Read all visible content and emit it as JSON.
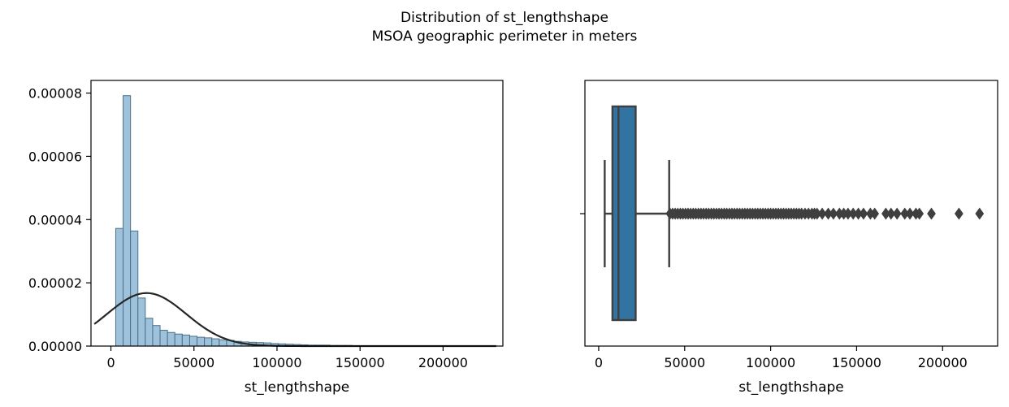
{
  "figure": {
    "title_line1": "Distribution of st_lengthshape",
    "title_line2": "MSOA geographic perimeter in meters"
  },
  "chart_data": [
    {
      "type": "histogram",
      "xlabel": "st_lengthshape",
      "ylabel": "",
      "xlim": [
        -12000,
        236000
      ],
      "ylim": [
        0,
        8.4e-05
      ],
      "xticks": [
        0,
        50000,
        100000,
        150000,
        200000
      ],
      "xtick_labels": [
        "0",
        "50000",
        "100000",
        "150000",
        "200000"
      ],
      "yticks": [
        0,
        2e-05,
        4e-05,
        6e-05,
        8e-05
      ],
      "ytick_labels": [
        "0.00000",
        "0.00002",
        "0.00004",
        "0.00006",
        "0.00008"
      ],
      "bin_start": 2900,
      "bin_width": 4450,
      "bin_densities": [
        3.72e-05,
        7.92e-05,
        3.64e-05,
        1.52e-05,
        8.8e-06,
        6.5e-06,
        5e-06,
        4.3e-06,
        3.8e-06,
        3.5e-06,
        3.1e-06,
        2.8e-06,
        2.6e-06,
        2.3e-06,
        2e-06,
        1.8e-06,
        1.5e-06,
        1.3e-06,
        1.2e-06,
        1.1e-06,
        1e-06,
        8e-07,
        7e-07,
        6e-07,
        5e-07,
        4e-07,
        3e-07,
        3e-07,
        3e-07,
        2e-07,
        2e-07,
        2e-07,
        1e-07,
        1e-07,
        1e-07,
        1e-07,
        1e-07,
        1e-07,
        1e-07,
        1e-07,
        1e-07,
        1e-07,
        1e-07,
        1e-07,
        1e-07,
        1e-07,
        1e-07,
        1e-07,
        1e-07,
        1e-07
      ],
      "fit_curve": {
        "type": "normal",
        "mean": 21500,
        "std": 23800,
        "x_range": [
          -10000,
          232000
        ]
      },
      "colors": {
        "bar_fill": "#9ec2dc",
        "bar_edge": "#4d6f87",
        "curve": "#262626"
      }
    },
    {
      "type": "boxplot",
      "orientation": "horizontal",
      "xlabel": "st_lengthshape",
      "xlim": [
        -8000,
        232000
      ],
      "xticks": [
        0,
        50000,
        100000,
        150000,
        200000
      ],
      "xtick_labels": [
        "0",
        "50000",
        "100000",
        "150000",
        "200000"
      ],
      "whisker_low": 3500,
      "q1": 8000,
      "median": 11500,
      "q3": 21500,
      "whisker_high": 41000,
      "outliers": [
        41500,
        43000,
        44500,
        46000,
        47500,
        49000,
        50500,
        52000,
        53500,
        55000,
        56500,
        58000,
        59500,
        61000,
        62500,
        64000,
        65500,
        67000,
        68500,
        70000,
        71500,
        73000,
        74500,
        76000,
        77500,
        79000,
        80500,
        82000,
        83500,
        85000,
        86500,
        88000,
        89500,
        91000,
        92500,
        94000,
        95500,
        97000,
        98500,
        100000,
        101500,
        103000,
        104500,
        106000,
        107500,
        109000,
        110500,
        112000,
        113500,
        115000,
        116500,
        118000,
        120000,
        122000,
        124000,
        125500,
        127000,
        130000,
        133500,
        136500,
        140000,
        142500,
        145000,
        148000,
        151000,
        154000,
        158000,
        160500,
        167000,
        170000,
        173500,
        178000,
        181000,
        184500,
        186500,
        193500,
        209500,
        221500
      ],
      "colors": {
        "box_fill": "#3274a1",
        "line": "#3f3f3f",
        "outlier": "#3f3f3f"
      }
    }
  ]
}
